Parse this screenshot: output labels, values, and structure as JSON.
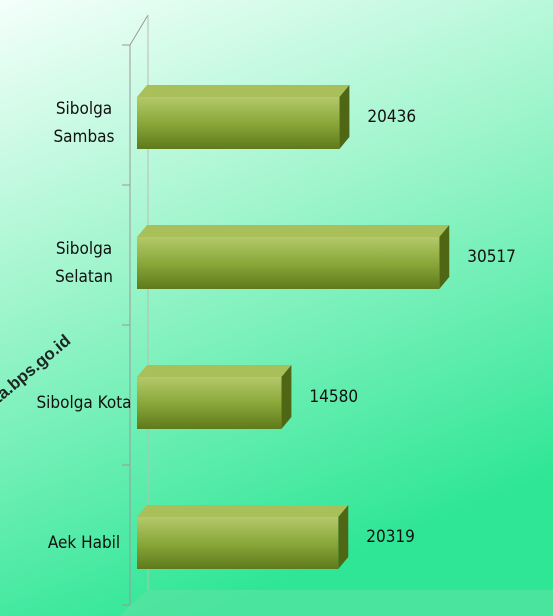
{
  "chart_data": {
    "type": "bar",
    "orientation": "horizontal",
    "categories": [
      "Sibolga Sambas",
      "Sibolga Selatan",
      "Sibolga Kota",
      "Aek Habil"
    ],
    "values": [
      20436,
      30517,
      14580,
      20319
    ],
    "color": "#8aa83a",
    "xlim": [
      0,
      42000
    ],
    "watermark": "kota.bps.go.id"
  }
}
